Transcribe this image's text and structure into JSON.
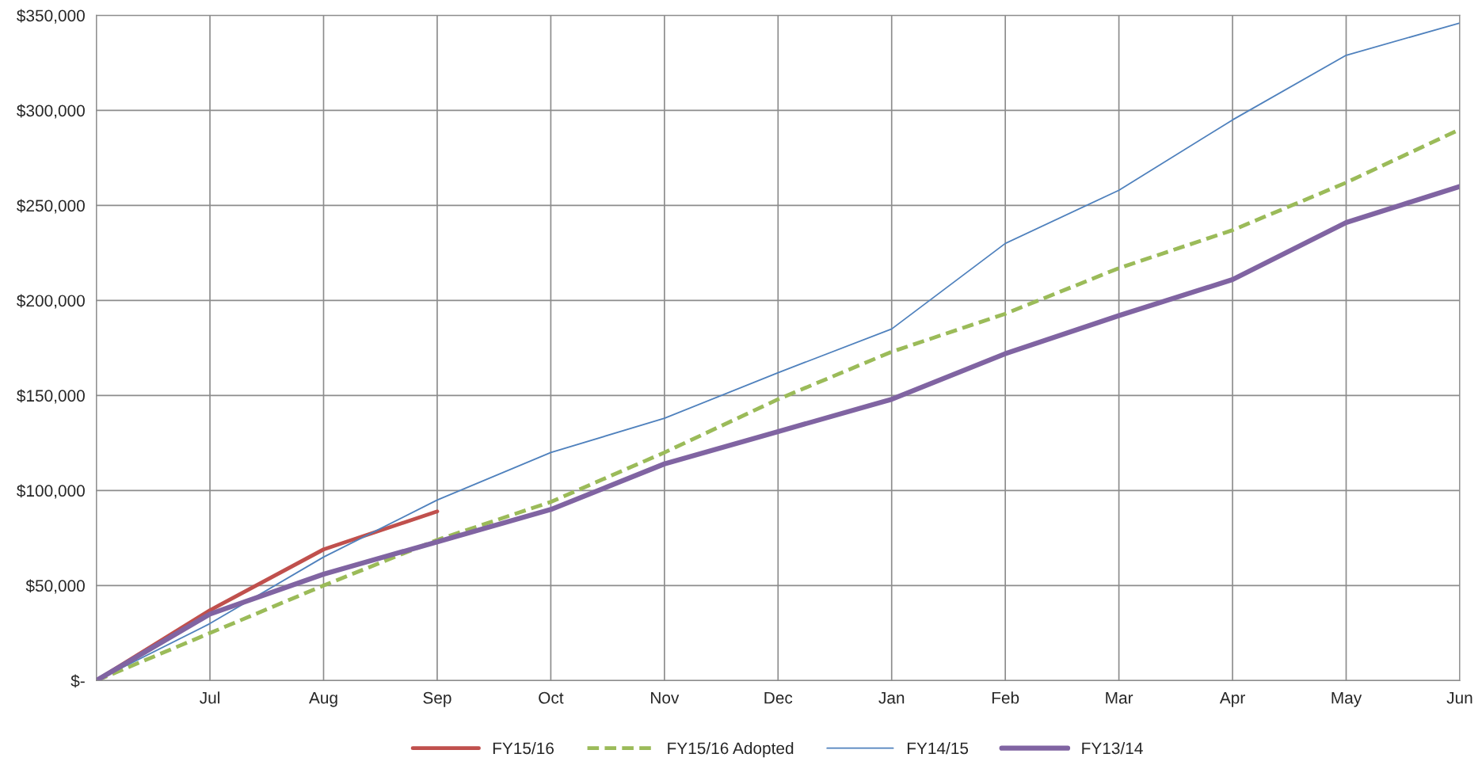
{
  "chart_data": {
    "type": "line",
    "categories": [
      null,
      "Jul",
      "Aug",
      "Sep",
      "Oct",
      "Nov",
      "Dec",
      "Jan",
      "Feb",
      "Mar",
      "Apr",
      "May",
      "Jun"
    ],
    "series": [
      {
        "name": "FY15/16",
        "color": "#c0504d",
        "line_style": "solid",
        "values": [
          0,
          37000,
          69000,
          89000,
          null,
          null,
          null,
          null,
          null,
          null,
          null,
          null,
          null
        ]
      },
      {
        "name": "FY15/16 Adopted",
        "color": "#9bbb59",
        "line_style": "dashed",
        "values": [
          0,
          25000,
          50000,
          74000,
          94000,
          120000,
          148000,
          173000,
          193000,
          217000,
          237000,
          262000,
          290000
        ]
      },
      {
        "name": "FY14/15",
        "color": "#4f81bd",
        "line_style": "solid",
        "values": [
          0,
          30000,
          65000,
          95000,
          120000,
          138000,
          162000,
          185000,
          230000,
          258000,
          295000,
          329000,
          346000
        ]
      },
      {
        "name": "FY13/14",
        "color": "#8064a2",
        "line_style": "solid",
        "values": [
          0,
          35000,
          56000,
          73000,
          90000,
          114000,
          131000,
          148000,
          172000,
          192000,
          211000,
          241000,
          260000
        ]
      }
    ],
    "ylim": [
      0,
      350000
    ],
    "yticks": [
      {
        "value": 0,
        "label": "$-"
      },
      {
        "value": 50000,
        "label": "$50,000"
      },
      {
        "value": 100000,
        "label": "$100,000"
      },
      {
        "value": 150000,
        "label": "$150,000"
      },
      {
        "value": 200000,
        "label": "$200,000"
      },
      {
        "value": 250000,
        "label": "$250,000"
      },
      {
        "value": 300000,
        "label": "$300,000"
      },
      {
        "value": 350000,
        "label": "$350,000"
      }
    ],
    "grid": true,
    "legend": "bottom",
    "marker": "none"
  }
}
